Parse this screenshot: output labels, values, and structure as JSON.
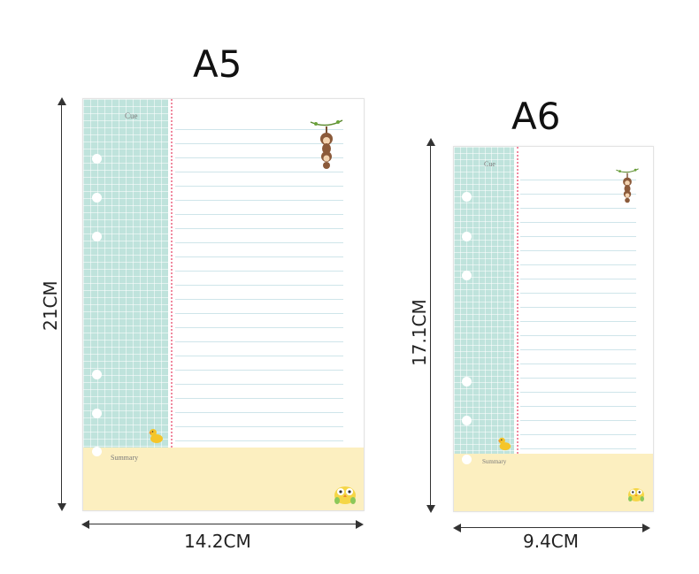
{
  "a5": {
    "title": "A5",
    "height_label": "21CM",
    "width_label": "14.2CM",
    "cue_label": "Cue",
    "summary_label": "Summary",
    "icons": [
      "monkey-icon",
      "duck-icon",
      "owl-icon"
    ]
  },
  "a6": {
    "title": "A6",
    "height_label": "17.1CM",
    "width_label": "9.4CM",
    "cue_label": "Cue",
    "summary_label": "Summary",
    "icons": [
      "monkey-icon",
      "duck-icon",
      "owl-icon"
    ]
  },
  "colors": {
    "cue_background": "#bfe3dc",
    "summary_background": "#fcefc0",
    "margin_line": "#f08aa0",
    "rule_line": "#cfe5ea"
  }
}
